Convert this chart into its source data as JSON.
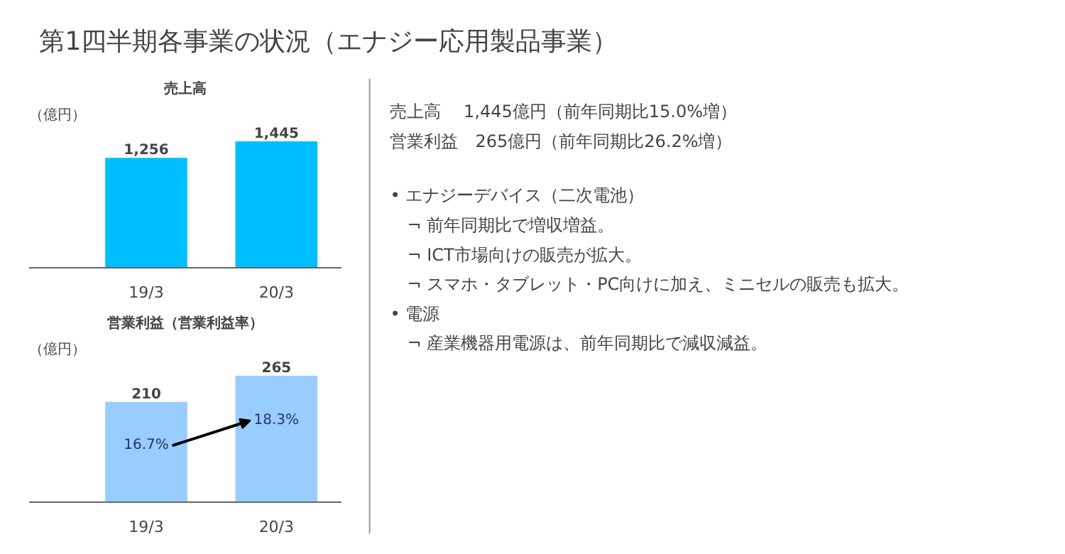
{
  "chart_data": [
    {
      "type": "bar",
      "title": "売上高",
      "ylabel": "（億円）",
      "categories": [
        "19/3",
        "20/3"
      ],
      "values": [
        1256,
        1445
      ],
      "value_labels": [
        "1,256",
        "1,445"
      ],
      "color": "#00bfff",
      "tick_labels": "x"
    },
    {
      "type": "bar",
      "title": "営業利益（営業利益率）",
      "ylabel": "（億円）",
      "categories": [
        "19/3",
        "20/3"
      ],
      "values": [
        210,
        265
      ],
      "data_labels": true,
      "color": "#99ccff",
      "tick_labels": "x",
      "annotations": [
        "16.7%",
        "18.3%"
      ]
    },
    {
      "type": "other",
      "title": "第1四半期各事業の状況（エナジー応用製品事業）",
      "annotations": [
        "売上高　 1,445億円（前年同期比15.0%増）",
        "営業利益　265億円（前年同期比26.2%増）",
        "• エナジーデバイス（二次電池）",
        "　¬ 前年同期比で増収増益。",
        "　¬ ICT市場向けの販売が拡大。",
        "　¬ スマホ・タブレット・PC向けに加え、ミニセルの販売も拡大。",
        "• 電源",
        "　¬ 産業機器用電源は、前年同期比で減収減益。"
      ]
    }
  ]
}
